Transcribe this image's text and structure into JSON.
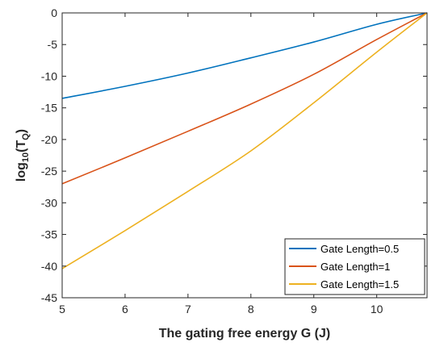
{
  "chart_data": {
    "type": "line",
    "title": "",
    "xlabel": "The gating free energy G (J)",
    "ylabel_main": "log",
    "ylabel_sub": "10",
    "ylabel_open": "(T",
    "ylabel_sub2": "Q",
    "ylabel_close": ")",
    "xlim": [
      5,
      10.8
    ],
    "ylim": [
      -45,
      0
    ],
    "xticks": [
      5,
      6,
      7,
      8,
      9,
      10
    ],
    "yticks": [
      0,
      -5,
      -10,
      -15,
      -20,
      -25,
      -30,
      -35,
      -40,
      -45
    ],
    "xtick_labels": [
      "5",
      "6",
      "7",
      "8",
      "9",
      "10"
    ],
    "ytick_labels": [
      "0",
      "-5",
      "-10",
      "-15",
      "-20",
      "-25",
      "-30",
      "-35",
      "-40",
      "-45"
    ],
    "grid": false,
    "legend_position": "bottom-right",
    "series": [
      {
        "name": "Gate Length=0.5",
        "color": "#0072BD",
        "x": [
          5,
          6,
          7,
          8,
          9,
          10,
          10.8
        ],
        "y": [
          -13.5,
          -11.6,
          -9.5,
          -7.1,
          -4.6,
          -1.8,
          0
        ]
      },
      {
        "name": "Gate Length=1",
        "color": "#D95319",
        "x": [
          5,
          6,
          7,
          8,
          9,
          10,
          10.8
        ],
        "y": [
          -27.0,
          -22.9,
          -18.7,
          -14.4,
          -9.7,
          -4.2,
          0
        ]
      },
      {
        "name": "Gate Length=1.5",
        "color": "#EDB120",
        "x": [
          5,
          6,
          7,
          8,
          9,
          10,
          10.8
        ],
        "y": [
          -40.4,
          -34.4,
          -28.2,
          -21.8,
          -14.2,
          -6.2,
          0
        ]
      }
    ]
  }
}
